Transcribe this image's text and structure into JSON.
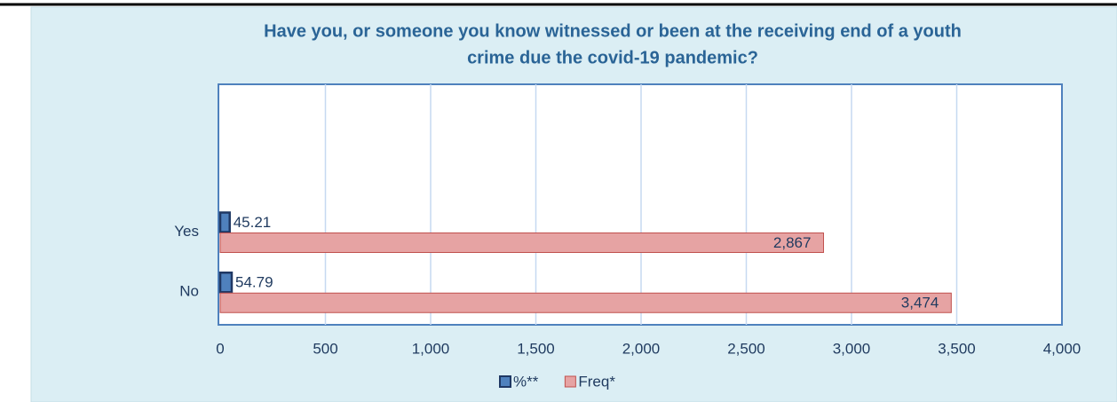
{
  "chart_data": {
    "type": "bar",
    "orientation": "horizontal",
    "title": [
      "Have you, or someone you know witnessed or been at the receiving end of a youth",
      "crime due the covid-19 pandemic?"
    ],
    "categories": [
      "Yes",
      "No"
    ],
    "series": [
      {
        "name": "%**",
        "color": "#4f81bd",
        "values": [
          45.21,
          54.79
        ]
      },
      {
        "name": "Freq*",
        "color": "#e6a3a3",
        "values": [
          2867,
          3474
        ],
        "value_labels": [
          "2,867",
          "3,474"
        ]
      }
    ],
    "xlim": [
      0,
      4000
    ],
    "xticks": [
      0,
      500,
      {
        "value": 1000,
        "label": "1,000"
      },
      {
        "value": 1500,
        "label": "1,500"
      },
      {
        "value": 2000,
        "label": "2,000"
      },
      {
        "value": 2500,
        "label": "2,500"
      },
      {
        "value": 3000,
        "label": "3,000"
      },
      {
        "value": 3500,
        "label": "3,500"
      },
      {
        "value": 4000,
        "label": "4,000"
      }
    ],
    "grid": true,
    "legend": "bottom"
  }
}
